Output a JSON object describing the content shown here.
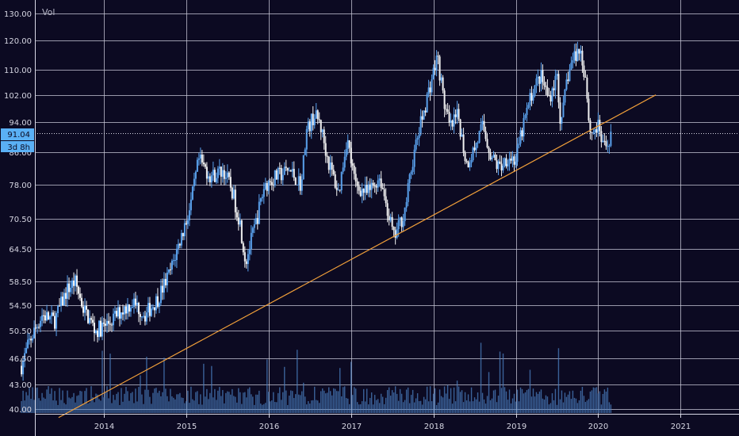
{
  "chart_data": {
    "type": "candlestick",
    "volume_label": "Vol",
    "y_ticks": [
      "130.00",
      "120.00",
      "110.00",
      "102.00",
      "94.00",
      "86.00",
      "78.00",
      "70.50",
      "64.50",
      "58.50",
      "54.50",
      "50.50",
      "46.50",
      "43.00",
      "40.00"
    ],
    "x_ticks": [
      "2014",
      "2015",
      "2016",
      "2017",
      "2018",
      "2019",
      "2020",
      "2021"
    ],
    "last_price_label": "91.04",
    "countdown_label": "3d 8h",
    "grid": true,
    "price_scale": "log",
    "colors": {
      "background": "#0c0a22",
      "up": "#5aa2ee",
      "down": "#f2f2f2",
      "trendline": "#f2a03a",
      "grid": "#c8c8d8",
      "volume": "#4a7fc0",
      "tag": "#5ab0f5"
    },
    "trendline": {
      "start": {
        "year": 2013.45,
        "price": 39.0
      },
      "end": {
        "year": 2020.7,
        "price": 102.0
      }
    },
    "price_path": [
      [
        2013.0,
        45.5
      ],
      [
        2013.1,
        49.0
      ],
      [
        2013.25,
        53.0
      ],
      [
        2013.4,
        52.0
      ],
      [
        2013.55,
        57.0
      ],
      [
        2013.65,
        58.5
      ],
      [
        2013.75,
        54.0
      ],
      [
        2013.9,
        50.5
      ],
      [
        2014.05,
        51.5
      ],
      [
        2014.2,
        53.5
      ],
      [
        2014.35,
        55.0
      ],
      [
        2014.5,
        53.0
      ],
      [
        2014.65,
        55.5
      ],
      [
        2014.8,
        60.0
      ],
      [
        2014.95,
        67.5
      ],
      [
        2015.05,
        73.0
      ],
      [
        2015.15,
        84.0
      ],
      [
        2015.3,
        80.0
      ],
      [
        2015.45,
        81.5
      ],
      [
        2015.55,
        77.0
      ],
      [
        2015.65,
        70.0
      ],
      [
        2015.72,
        62.0
      ],
      [
        2015.85,
        70.0
      ],
      [
        2015.95,
        78.0
      ],
      [
        2016.1,
        80.0
      ],
      [
        2016.25,
        81.5
      ],
      [
        2016.4,
        78.0
      ],
      [
        2016.45,
        91.0
      ],
      [
        2016.55,
        96.0
      ],
      [
        2016.62,
        94.0
      ],
      [
        2016.72,
        84.0
      ],
      [
        2016.85,
        76.0
      ],
      [
        2016.95,
        90.0
      ],
      [
        2017.05,
        78.0
      ],
      [
        2017.2,
        76.0
      ],
      [
        2017.35,
        80.0
      ],
      [
        2017.45,
        72.0
      ],
      [
        2017.52,
        66.5
      ],
      [
        2017.65,
        72.0
      ],
      [
        2017.75,
        84.0
      ],
      [
        2017.85,
        94.0
      ],
      [
        2017.95,
        104.0
      ],
      [
        2018.05,
        114.5
      ],
      [
        2018.12,
        101.0
      ],
      [
        2018.2,
        92.0
      ],
      [
        2018.3,
        96.0
      ],
      [
        2018.4,
        83.0
      ],
      [
        2018.5,
        87.0
      ],
      [
        2018.6,
        93.0
      ],
      [
        2018.7,
        85.0
      ],
      [
        2018.8,
        82.0
      ],
      [
        2018.9,
        85.0
      ],
      [
        2019.0,
        84.0
      ],
      [
        2019.1,
        94.0
      ],
      [
        2019.2,
        103.0
      ],
      [
        2019.3,
        108.0
      ],
      [
        2019.4,
        101.0
      ],
      [
        2019.5,
        108.0
      ],
      [
        2019.55,
        92.0
      ],
      [
        2019.62,
        107.0
      ],
      [
        2019.7,
        114.0
      ],
      [
        2019.78,
        117.0
      ],
      [
        2019.85,
        107.0
      ],
      [
        2019.9,
        91.0
      ],
      [
        2020.0,
        92.5
      ],
      [
        2020.08,
        86.5
      ],
      [
        2020.16,
        91.0
      ]
    ]
  }
}
